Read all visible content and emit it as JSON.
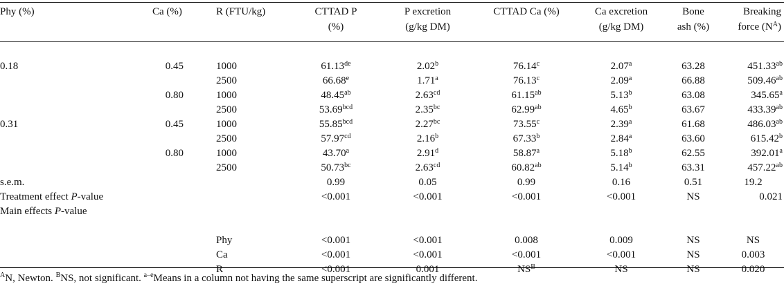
{
  "headers": {
    "phy": "Phy (%)",
    "ca": "Ca (%)",
    "r": "R (FTU/kg)",
    "cttad_p": [
      "CTTAD P",
      "(%)"
    ],
    "p_exc": [
      "P excretion",
      "(g/kg DM)"
    ],
    "cttad_ca": "CTTAD Ca (%)",
    "ca_exc": [
      "Ca excretion",
      "(g/kg DM)"
    ],
    "bone": [
      "Bone",
      "ash (%)"
    ],
    "break": [
      "Breaking",
      "force (N"
    ],
    "break_sup": "A",
    "break_close": ")"
  },
  "rows": [
    {
      "phy": "0.18",
      "ca": "0.45",
      "r": "1000",
      "cp": "61.13",
      "cp_s": "de",
      "pe": "2.02",
      "pe_s": "b",
      "cc": "76.14",
      "cc_s": "c",
      "ce": "2.07",
      "ce_s": "a",
      "ba": "63.28",
      "bf": "451.33",
      "bf_s": "ab"
    },
    {
      "phy": "",
      "ca": "",
      "r": "2500",
      "cp": "66.68",
      "cp_s": "e",
      "pe": "1.71",
      "pe_s": "a",
      "cc": "76.13",
      "cc_s": "c",
      "ce": "2.09",
      "ce_s": "a",
      "ba": "66.88",
      "bf": "509.46",
      "bf_s": "ab"
    },
    {
      "phy": "",
      "ca": "0.80",
      "r": "1000",
      "cp": "48.45",
      "cp_s": "ab",
      "pe": "2.63",
      "pe_s": "cd",
      "cc": "61.15",
      "cc_s": "ab",
      "ce": "5.13",
      "ce_s": "b",
      "ba": "63.08",
      "bf": "345.65",
      "bf_s": "a"
    },
    {
      "phy": "",
      "ca": "",
      "r": "2500",
      "cp": "53.69",
      "cp_s": "bcd",
      "pe": "2.35",
      "pe_s": "bc",
      "cc": "62.99",
      "cc_s": "ab",
      "ce": "4.65",
      "ce_s": "b",
      "ba": "63.67",
      "bf": "433.39",
      "bf_s": "ab"
    },
    {
      "phy": "0.31",
      "ca": "0.45",
      "r": "1000",
      "cp": "55.85",
      "cp_s": "bcd",
      "pe": "2.27",
      "pe_s": "bc",
      "cc": "73.55",
      "cc_s": "c",
      "ce": "2.39",
      "ce_s": "a",
      "ba": "61.68",
      "bf": "486.03",
      "bf_s": "ab"
    },
    {
      "phy": "",
      "ca": "",
      "r": "2500",
      "cp": "57.97",
      "cp_s": "cd",
      "pe": "2.16",
      "pe_s": "b",
      "cc": "67.33",
      "cc_s": "b",
      "ce": "2.84",
      "ce_s": "a",
      "ba": "63.60",
      "bf": "615.42",
      "bf_s": "b"
    },
    {
      "phy": "",
      "ca": "0.80",
      "r": "1000",
      "cp": "43.70",
      "cp_s": "a",
      "pe": "2.91",
      "pe_s": "d",
      "cc": "58.87",
      "cc_s": "a",
      "ce": "5.18",
      "ce_s": "b",
      "ba": "62.55",
      "bf": "392.01",
      "bf_s": "a"
    },
    {
      "phy": "",
      "ca": "",
      "r": "2500",
      "cp": "50.73",
      "cp_s": "bc",
      "pe": "2.63",
      "pe_s": "cd",
      "cc": "60.82",
      "cc_s": "ab",
      "ce": "5.14",
      "ce_s": "b",
      "ba": "63.31",
      "bf": "457.22",
      "bf_s": "ab"
    }
  ],
  "sem": {
    "label": "s.e.m.",
    "cp": "0.99",
    "pe": "0.05",
    "cc": "0.99",
    "ce": "0.16",
    "ba": "0.51",
    "bf": "19.2"
  },
  "treatment": {
    "label_pre": "Treatment effect ",
    "label_italic": "P",
    "label_post": "-value",
    "cp": "<0.001",
    "pe": "<0.001",
    "cc": "<0.001",
    "ce": "<0.001",
    "ba": "NS",
    "bf": "0.021"
  },
  "main": {
    "label_pre": "Main effects ",
    "label_italic": "P",
    "label_post": "-value"
  },
  "effects": [
    {
      "name": "Phy",
      "cp": "<0.001",
      "pe": "<0.001",
      "cc": "0.008",
      "cc_s": "",
      "ce": "0.009",
      "ba": "NS",
      "bf": "NS"
    },
    {
      "name": "Ca",
      "cp": "<0.001",
      "pe": "<0.001",
      "cc": "<0.001",
      "cc_s": "",
      "ce": "<0.001",
      "ba": "NS",
      "bf": "0.003"
    },
    {
      "name": "R",
      "cp": "<0.001",
      "pe": "0.001",
      "cc": "NS",
      "cc_s": "B",
      "ce": "NS",
      "ba": "NS",
      "bf": "0.020"
    }
  ],
  "footnote": {
    "a_sup": "A",
    "a_text": "N, Newton. ",
    "b_sup": "B",
    "b_text": "NS, not significant. ",
    "c_sup": "a–e",
    "c_text": "Means in a column not having the same superscript are significantly different."
  }
}
